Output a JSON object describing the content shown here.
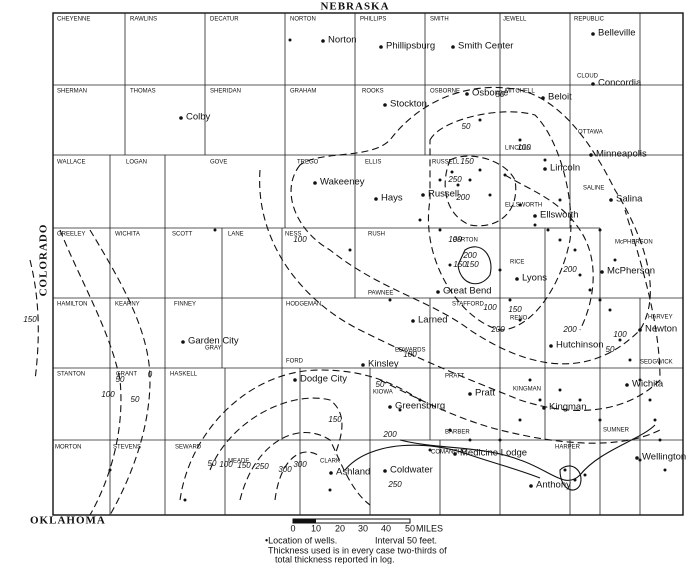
{
  "states": {
    "north": "NEBRASKA",
    "west": "COLORADO",
    "south": "OKLAHOMA"
  },
  "counties": [
    "CHEYENNE",
    "RAWLINS",
    "DECATUR",
    "NORTON",
    "PHILLIPS",
    "SMITH",
    "JEWELL",
    "REPUBLIC",
    "SHERMAN",
    "THOMAS",
    "SHERIDAN",
    "GRAHAM",
    "ROOKS",
    "OSBORNE",
    "MITCHELL",
    "CLOUD",
    "OTTAWA",
    "WALLACE",
    "LOGAN",
    "GOVE",
    "TREGO",
    "ELLIS",
    "RUSSELL",
    "LINCOLN",
    "SALINE",
    "ELLSWORTH",
    "McPHERSON",
    "RICE",
    "GREELEY",
    "WICHITA",
    "SCOTT",
    "LANE",
    "NESS",
    "RUSH",
    "BARTON",
    "HAMILTON",
    "KEARNY",
    "FINNEY",
    "HODGEMAN",
    "PAWNEE",
    "STAFFORD",
    "RENO",
    "HARVEY",
    "GRAY",
    "FORD",
    "EDWARDS",
    "PRATT",
    "STANTON",
    "GRANT",
    "HASKELL",
    "KIOWA",
    "KINGMAN",
    "SEDGWICK",
    "MORTON",
    "STEVENS",
    "SEWARD",
    "MEADE",
    "CLARK",
    "COMANCHE",
    "BARBER",
    "HARPER",
    "SUMNER"
  ],
  "towns": [
    "Norton",
    "Phillipsburg",
    "Smith Center",
    "Belleville",
    "Concordia",
    "Colby",
    "Stockton",
    "Osborne",
    "Beloit",
    "Minneapolis",
    "Lincoln",
    "Wakeeney",
    "Hays",
    "Russell",
    "Ellsworth",
    "Salina",
    "Great Bend",
    "Lyons",
    "McPherson",
    "Larned",
    "Garden City",
    "Kinsley",
    "Hutchinson",
    "Newton",
    "Dodge City",
    "Greensburg",
    "Pratt",
    "Wichita",
    "Kingman",
    "Medicine Lodge",
    "Ashland",
    "Coldwater",
    "Anthony",
    "Wellington"
  ],
  "contour_labels": [
    "50",
    "100",
    "150",
    "200",
    "250",
    "100",
    "150",
    "200",
    "50",
    "100",
    "200",
    "150",
    "100",
    "50",
    "50",
    "100",
    "150",
    "200",
    "250",
    "300",
    "300",
    "250",
    "150",
    "100",
    "50",
    "100",
    "150",
    "200",
    "200",
    "50",
    "100",
    "0",
    "50",
    "150"
  ],
  "scale": [
    "0",
    "10",
    "20",
    "30",
    "40",
    "50",
    "MILES"
  ],
  "legend": {
    "wells": "•Location of wells.",
    "interval": "Interval 50 feet.",
    "note1": "Thickness used is in every case two-thirds of",
    "note2": "total thickness reported in log."
  }
}
